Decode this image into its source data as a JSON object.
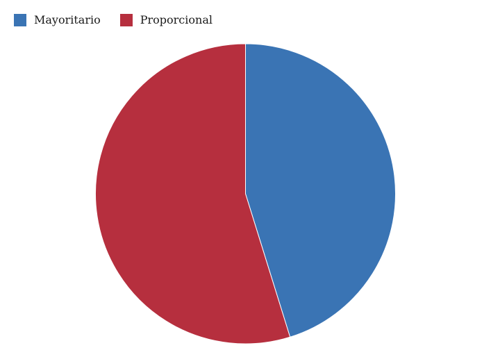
{
  "chart_data": {
    "type": "pie",
    "series": [
      {
        "name": "Mayoritario",
        "value": 45.2,
        "color": "#3a74b4"
      },
      {
        "name": "Proporcional",
        "value": 54.8,
        "color": "#b62f3e"
      }
    ],
    "title": "",
    "legend_position": "top-left",
    "start_angle": "12 o'clock",
    "direction": "clockwise"
  },
  "legend": {
    "items": [
      {
        "label": "Mayoritario",
        "color": "#3a74b4"
      },
      {
        "label": "Proporcional",
        "color": "#b62f3e"
      }
    ]
  }
}
